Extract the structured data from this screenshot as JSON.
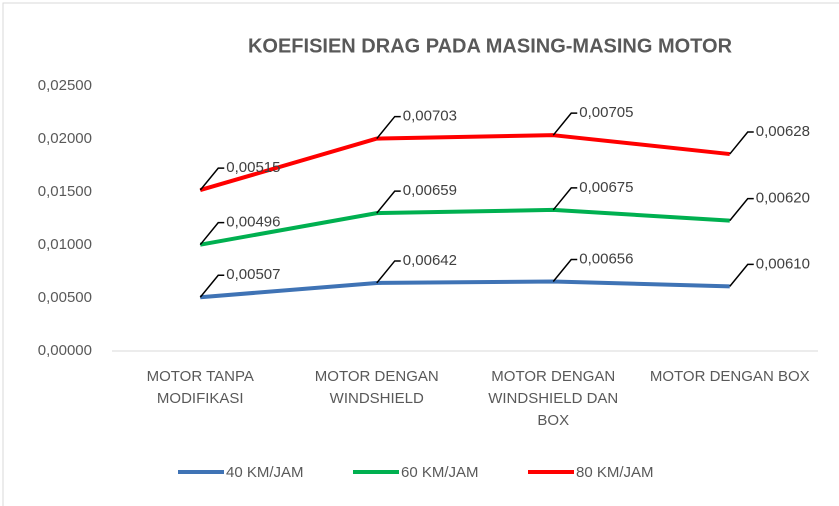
{
  "chart_data": {
    "type": "line",
    "stacked": true,
    "title": "KOEFISIEN DRAG PADA MASING-MASING MOTOR",
    "categories": [
      "MOTOR TANPA MODIFIKASI",
      "MOTOR DENGAN WINDSHIELD",
      "MOTOR DENGAN WINDSHIELD DAN BOX",
      "MOTOR DENGAN BOX"
    ],
    "series": [
      {
        "name": "40 KM/JAM",
        "color": "#3f73b5",
        "values": [
          0.00507,
          0.00642,
          0.00656,
          0.0061
        ],
        "value_labels": [
          "0,00507",
          "0,00642",
          "0,00656",
          "0,00610"
        ]
      },
      {
        "name": "60 KM/JAM",
        "color": "#00b050",
        "values": [
          0.00496,
          0.00659,
          0.00675,
          0.0062
        ],
        "value_labels": [
          "0,00496",
          "0,00659",
          "0,00675",
          "0,00620"
        ]
      },
      {
        "name": "80 KM/JAM",
        "color": "#ff0000",
        "values": [
          0.00515,
          0.00703,
          0.00705,
          0.00628
        ],
        "value_labels": [
          "0,00515",
          "0,00703",
          "0,00705",
          "0,00628"
        ]
      }
    ],
    "ylim": [
      0,
      0.025
    ],
    "yticks": [
      {
        "value": 0,
        "label": "0,00000"
      },
      {
        "value": 0.005,
        "label": "0,00500"
      },
      {
        "value": 0.01,
        "label": "0,01000"
      },
      {
        "value": 0.015,
        "label": "0,01500"
      },
      {
        "value": 0.02,
        "label": "0,02000"
      },
      {
        "value": 0.025,
        "label": "0,02500"
      }
    ],
    "grid": false,
    "legend": "bottom"
  }
}
